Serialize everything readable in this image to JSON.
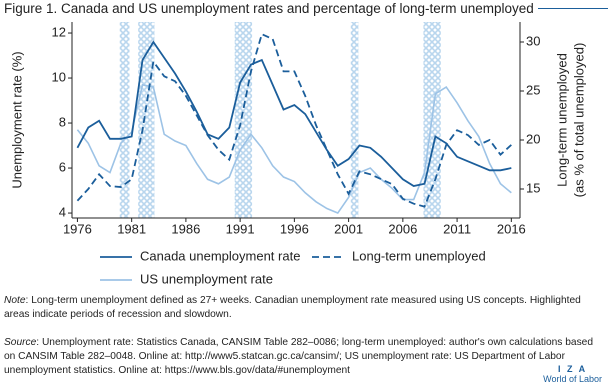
{
  "figure_title": "Figure 1. Canada and US unemployment rates and percentage of long-term unemployed",
  "chart_data": {
    "type": "line",
    "xlabel": null,
    "ylabel": "Unemployment rate (%)",
    "y2label": [
      "Long-term unemployed",
      "(as % of total unemployed)"
    ],
    "x": [
      1976,
      1977,
      1978,
      1979,
      1980,
      1981,
      1982,
      1983,
      1984,
      1985,
      1986,
      1987,
      1988,
      1989,
      1990,
      1991,
      1992,
      1993,
      1994,
      1995,
      1996,
      1997,
      1998,
      1999,
      2000,
      2001,
      2002,
      2003,
      2004,
      2005,
      2006,
      2007,
      2008,
      2009,
      2010,
      2011,
      2012,
      2013,
      2014,
      2015,
      2016
    ],
    "series": [
      {
        "name": "Canada unemployment rate",
        "color": "#1b5e9b",
        "dash": false,
        "axis": "y",
        "values": [
          6.9,
          7.8,
          8.1,
          7.3,
          7.3,
          7.4,
          10.8,
          11.6,
          10.9,
          10.2,
          9.4,
          8.5,
          7.5,
          7.3,
          7.8,
          9.8,
          10.6,
          10.8,
          9.7,
          8.6,
          8.8,
          8.4,
          7.6,
          6.8,
          6.1,
          6.4,
          7.0,
          6.9,
          6.5,
          6.0,
          5.5,
          5.2,
          5.3,
          7.4,
          7.1,
          6.5,
          6.3,
          6.1,
          5.9,
          5.9,
          6.0
        ]
      },
      {
        "name": "Long-term unemployed",
        "color": "#1b5e9b",
        "dash": true,
        "axis": "y2",
        "values": [
          13.8,
          15.0,
          16.5,
          15.3,
          15.2,
          16.0,
          21.0,
          28.0,
          26.5,
          26.0,
          24.5,
          22.5,
          20.5,
          19.0,
          18.0,
          21.5,
          27.0,
          30.8,
          30.3,
          27.0,
          27.0,
          24.5,
          21.5,
          19.0,
          16.5,
          14.5,
          16.8,
          16.5,
          16.0,
          15.5,
          14.0,
          13.5,
          13.2,
          16.0,
          19.5,
          21.0,
          20.5,
          19.5,
          20.0,
          18.5,
          19.5
        ]
      },
      {
        "name": "US unemployment rate",
        "color": "#9dc3e6",
        "dash": false,
        "axis": "y",
        "values": [
          7.7,
          7.1,
          6.1,
          5.8,
          7.1,
          7.6,
          9.7,
          9.6,
          7.5,
          7.2,
          7.0,
          6.2,
          5.5,
          5.3,
          5.6,
          6.8,
          7.5,
          6.9,
          6.1,
          5.6,
          5.4,
          4.9,
          4.5,
          4.2,
          4.0,
          4.7,
          5.8,
          6.0,
          5.5,
          5.1,
          4.6,
          4.6,
          5.8,
          9.3,
          9.6,
          8.9,
          8.1,
          7.4,
          6.2,
          5.3,
          4.9
        ]
      }
    ],
    "shaded_periods": [
      [
        1979.9,
        1980.8
      ],
      [
        1981.6,
        1983.1
      ],
      [
        1990.5,
        1992.1
      ],
      [
        2001.2,
        2001.9
      ],
      [
        2007.9,
        2009.5
      ]
    ],
    "shade_color": "#b9d6ee",
    "xlim": [
      1975.5,
      2016.8
    ],
    "xticks": [
      1976,
      1981,
      1986,
      1991,
      1996,
      2001,
      2006,
      2011,
      2016
    ],
    "ylim": [
      3.78,
      12.49
    ],
    "yticks": [
      4,
      6,
      8,
      10,
      12
    ],
    "y2lim": [
      12.04,
      32.04
    ],
    "y2ticks": [
      15,
      20,
      25,
      30
    ],
    "grid": false,
    "legend": "below"
  },
  "note": {
    "label": "Note",
    "text": ": Long-term unemployment defined as 27+ weeks. Canadian unemployment rate measured using US concepts. Highlighted areas indicate periods of recession and slowdown."
  },
  "source": {
    "label": "Source",
    "text": ": Unemployment rate: Statistics Canada, CANSIM Table 282–0086; long-term unemployed: author's own calculations based on CANSIM Table 282–0048. Online at: http://www5.statcan.gc.ca/cansim/; US unemployment rate: US Department of Labor unemployment statistics. Online at: https://www.bls.gov/data/#unemployment"
  },
  "logo": {
    "line1": "I Z A",
    "line2": "World of Labor"
  }
}
